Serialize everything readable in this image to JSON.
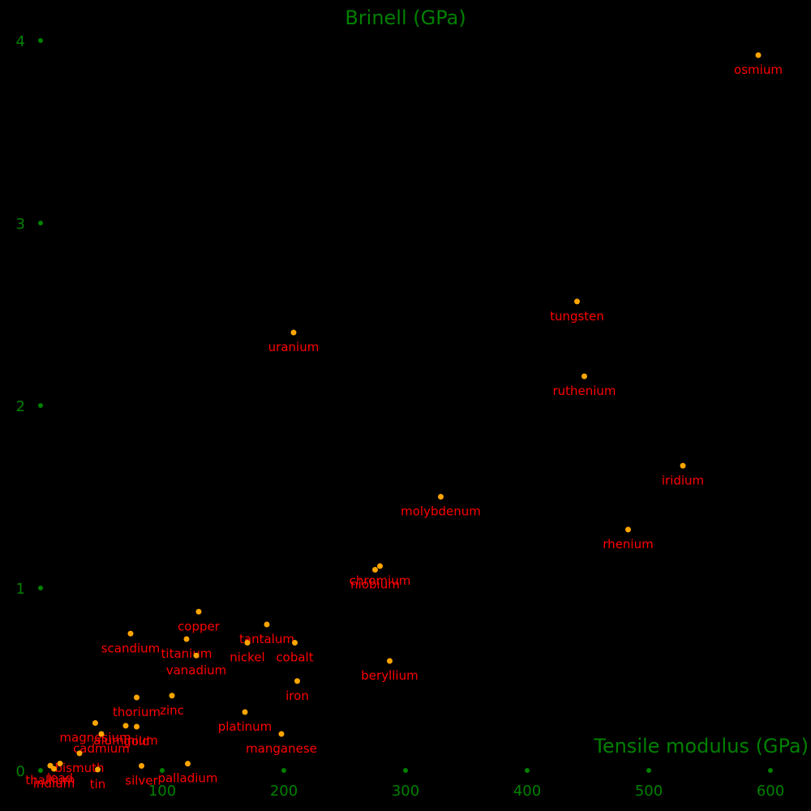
{
  "chart_data": {
    "type": "scatter",
    "title": "",
    "xlabel": "Tensile modulus (GPa)",
    "ylabel": "Brinell (GPa)",
    "xlim": [
      0,
      600
    ],
    "ylim": [
      0,
      4
    ],
    "x_ticks": [
      100,
      200,
      300,
      400,
      500,
      600
    ],
    "y_ticks": [
      0,
      1,
      2,
      3,
      4
    ],
    "grid": false,
    "legend": "none",
    "colors": {
      "axis": "#008000",
      "point": "#ffa500",
      "label": "#ff0000",
      "background": "#000000"
    },
    "points": [
      {
        "name": "osmium",
        "x": 590,
        "y": 3.92
      },
      {
        "name": "tungsten",
        "x": 441,
        "y": 2.57
      },
      {
        "name": "uranium",
        "x": 208,
        "y": 2.4
      },
      {
        "name": "ruthenium",
        "x": 447,
        "y": 2.16
      },
      {
        "name": "iridium",
        "x": 528,
        "y": 1.67
      },
      {
        "name": "molybdenum",
        "x": 329,
        "y": 1.5
      },
      {
        "name": "rhenium",
        "x": 483,
        "y": 1.32
      },
      {
        "name": "chromium",
        "x": 279,
        "y": 1.12
      },
      {
        "name": "niobium",
        "x": 275,
        "y": 1.1
      },
      {
        "name": "copper",
        "x": 130,
        "y": 0.87
      },
      {
        "name": "tantalum",
        "x": 186,
        "y": 0.8
      },
      {
        "name": "scandium",
        "x": 74,
        "y": 0.75
      },
      {
        "name": "titanium",
        "x": 120,
        "y": 0.72
      },
      {
        "name": "nickel",
        "x": 170,
        "y": 0.7
      },
      {
        "name": "cobalt",
        "x": 209,
        "y": 0.7
      },
      {
        "name": "vanadium",
        "x": 128,
        "y": 0.63
      },
      {
        "name": "beryllium",
        "x": 287,
        "y": 0.6
      },
      {
        "name": "iron",
        "x": 211,
        "y": 0.49
      },
      {
        "name": "thorium",
        "x": 79,
        "y": 0.4
      },
      {
        "name": "zinc",
        "x": 108,
        "y": 0.41
      },
      {
        "name": "platinum",
        "x": 168,
        "y": 0.32
      },
      {
        "name": "magnesium",
        "x": 45,
        "y": 0.26
      },
      {
        "name": "aluminium",
        "x": 70,
        "y": 0.245
      },
      {
        "name": "gold",
        "x": 79,
        "y": 0.24
      },
      {
        "name": "manganese",
        "x": 198,
        "y": 0.2
      },
      {
        "name": "cadmium",
        "x": 50,
        "y": 0.2
      },
      {
        "name": "bismuth",
        "x": 32,
        "y": 0.094
      },
      {
        "name": "lead",
        "x": 16,
        "y": 0.038
      },
      {
        "name": "palladium",
        "x": 121,
        "y": 0.037
      },
      {
        "name": "silver",
        "x": 83,
        "y": 0.025
      },
      {
        "name": "thallium",
        "x": 8,
        "y": 0.026
      },
      {
        "name": "indium",
        "x": 11,
        "y": 0.009
      },
      {
        "name": "tin",
        "x": 47,
        "y": 0.005
      }
    ]
  }
}
